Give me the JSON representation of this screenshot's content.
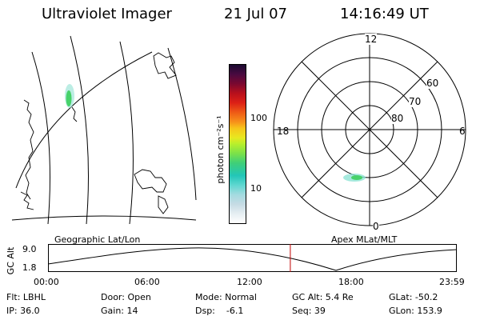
{
  "header": {
    "instrument": "Ultraviolet Imager",
    "date": "21 Jul 07",
    "time": "14:16:49 UT"
  },
  "colorbar": {
    "unit_label": "photon cm⁻²s⁻¹",
    "ticks": [
      "100",
      "10"
    ],
    "colors_bottom_to_top": [
      "#ffffff",
      "#e6eef2",
      "#c6dbe4",
      "#a4dbe0",
      "#5fd7d0",
      "#22c6b8",
      "#3fcf78",
      "#7be14a",
      "#b8ef2c",
      "#e8e820",
      "#f7c41a",
      "#f7901a",
      "#ee5a16",
      "#dc2016",
      "#b8101c",
      "#7a0830",
      "#4a0a40",
      "#1a0a30"
    ]
  },
  "left_map": {
    "caption": "Geographic Lat/Lon",
    "aurora_color": "#47d26a"
  },
  "polar_plot": {
    "caption": "Apex MLat/MLT",
    "mlt_labels": {
      "top": "12",
      "left": "18",
      "right": "6",
      "bottom": "0"
    },
    "lat_labels": [
      "60",
      "70",
      "80"
    ]
  },
  "altitude_strip": {
    "axis_label": "GC Alt",
    "y_max_label": "9.0",
    "y_min_label": "1.8",
    "time_ticks": [
      "00:00",
      "06:00",
      "12:00",
      "18:00",
      "23:59"
    ],
    "current_time_fraction": 0.594,
    "marker_color": "#c00000"
  },
  "info": {
    "row1": {
      "filter": "Flt: LBHL",
      "door": "Door: Open",
      "mode": "Mode: Normal",
      "gc_alt": "GC Alt: 5.4 Re",
      "glat": "GLat: -50.2"
    },
    "row2": {
      "ip": "IP: 36.0",
      "gain": "Gain: 14",
      "dsp": "Dsp:    -6.1",
      "seq": "Seq: 39",
      "glon": "GLon: 153.9"
    }
  }
}
